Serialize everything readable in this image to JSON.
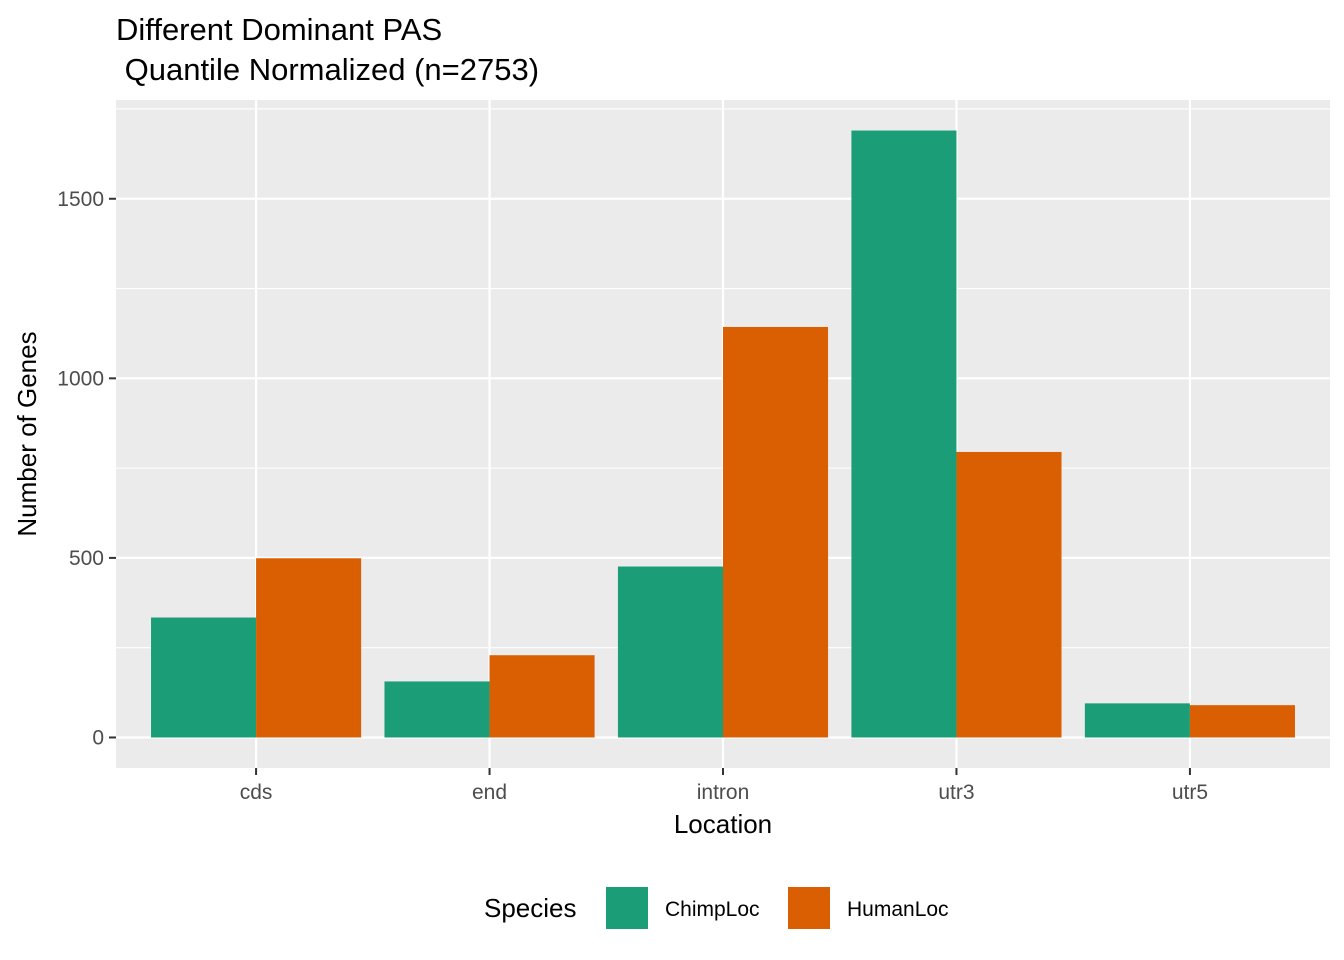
{
  "chart_data": {
    "type": "bar",
    "title_line1": "Different Dominant PAS",
    "title_line2": " Quantile Normalized (n=2753)",
    "xlabel": "Location",
    "ylabel": "Number of Genes",
    "categories": [
      "cds",
      "end",
      "intron",
      "utr3",
      "utr5"
    ],
    "series": [
      {
        "name": "ChimpLoc",
        "color": "#1B9E77",
        "values": [
          334,
          156,
          476,
          1690,
          95
        ]
      },
      {
        "name": "HumanLoc",
        "color": "#D95F02",
        "values": [
          499,
          229,
          1143,
          795,
          90
        ]
      }
    ],
    "ylim": [
      -85,
      1775
    ],
    "yticks": [
      0,
      500,
      1000,
      1500
    ],
    "ytick_labels": [
      "0",
      "500",
      "1000",
      "1500"
    ],
    "grid": true,
    "panel_background": "#EBEBEB",
    "legend": {
      "title": "Species",
      "position": "bottom"
    }
  }
}
